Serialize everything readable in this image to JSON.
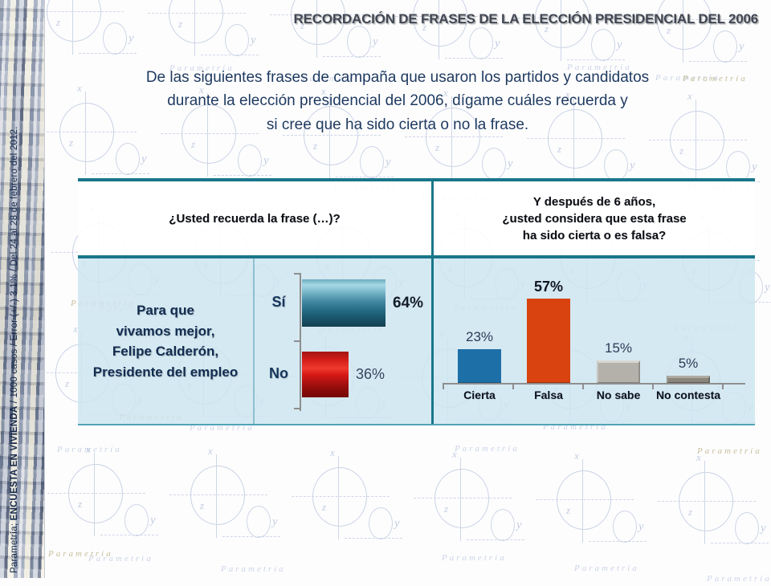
{
  "slide": {
    "title": "RECORDACIÓN DE FRASES DE LA ELECCIÓN PRESIDENCIAL DEL 2006",
    "question_lines": [
      "De las siguientes frases de campaña que usaron los partidos y candidatos",
      "durante la elección presidencial del 2006, dígame cuáles recuerda y",
      "si cree que ha sido cierta o no la frase."
    ]
  },
  "sidebar": {
    "source_prefix": "Parametría; ",
    "source_bold": "ENCUESTA EN VIVIENDA",
    "source_suffix": " / 1000 casos / Error (+/-) 3.1% / Del 24 al 28 de febrero del 2012."
  },
  "watermark": "Parametría",
  "table": {
    "left_header": "¿Usted recuerda la frase (…)?",
    "right_header_lines": [
      "Y después de 6 años,",
      "¿usted considera que esta frase",
      "ha sido cierta o es falsa?"
    ],
    "phrase_lines": [
      "Para que",
      "vivamos mejor,",
      "Felipe Calderón,",
      "Presidente del empleo"
    ]
  },
  "chart_data": [
    {
      "type": "bar",
      "orientation": "horizontal",
      "title": "¿Usted recuerda la frase (…)?",
      "categories": [
        "Sí",
        "No"
      ],
      "values": [
        64,
        36
      ],
      "data_labels": [
        "64%",
        "36%"
      ],
      "bar_styles": [
        "cylinder-teal",
        "cylinder-red"
      ],
      "emphasis": [
        true,
        false
      ],
      "xlim": [
        0,
        100
      ],
      "grid": false,
      "legend": "none"
    },
    {
      "type": "bar",
      "orientation": "vertical",
      "title": "Y después de 6 años, ¿usted considera que esta frase ha sido cierta o es falsa?",
      "categories": [
        "Cierta",
        "Falsa",
        "No sabe",
        "No contesta"
      ],
      "values": [
        23,
        57,
        15,
        5
      ],
      "data_labels": [
        "23%",
        "57%",
        "15%",
        "5%"
      ],
      "bar_styles": [
        "flat-blue",
        "flat-orange",
        "bevel-lightgray",
        "bevel-darkgray"
      ],
      "emphasis": [
        false,
        true,
        false,
        false
      ],
      "ylim": [
        0,
        100
      ],
      "grid": false,
      "legend": "none"
    }
  ],
  "colors": {
    "accent_teal": "#19768B",
    "title_text": "#414753",
    "question_text": "#1E3A5F",
    "phrase_text": "#122C50",
    "bar_teal": "#2E7D9A",
    "bar_red": "#C40E0E",
    "bar_blue": "#1D6FA8",
    "bar_orange": "#D8430F",
    "bar_lightgray": "#B4B1AB",
    "bar_darkgray": "#8A867D",
    "panel_bg": "#CDE5EF",
    "sketch_blue": "#A5B4D2",
    "sketch_tan": "#C7BF9A"
  }
}
